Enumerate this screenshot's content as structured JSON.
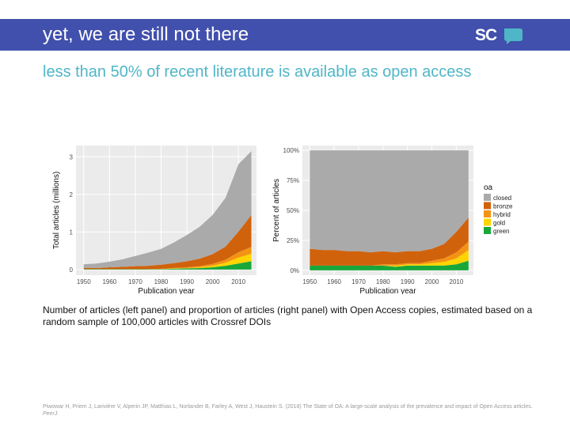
{
  "slide": {
    "title": "yet, we are still not there",
    "subtitle": "less than 50% of recent literature is available as open access",
    "logo_text": "SC",
    "caption": "Number of articles (left panel) and proportion of articles (right panel) with Open Access copies, estimated based on a random sample of 100,000 articles with Crossref DOIs",
    "citation_text": "Piwowar H, Priem J, Larivière V, Alperin JP, Matthias L, Norlander B, Farley A, West J, Haustein S. (2018) The State of OA: A large-scale analysis of the prevalence and impact of Open Access articles.",
    "citation_journal": "PeerJ."
  },
  "colors": {
    "bar": "#4150ac",
    "subtitle": "#4fb6c7",
    "closed": "#aaaaaa",
    "bronze": "#d1620c",
    "hybrid": "#f39314",
    "gold": "#ffd500",
    "green": "#18a73b"
  },
  "chart_data": [
    {
      "type": "area",
      "stacked": true,
      "xlabel": "Publication year",
      "ylabel": "Total articles (millions)",
      "xlim": [
        1947,
        2017
      ],
      "ylim": [
        -0.15,
        3.3
      ],
      "xticks": [
        1950,
        1960,
        1970,
        1980,
        1990,
        2000,
        2010
      ],
      "yticks": [
        0,
        1,
        2,
        3
      ],
      "ytick_labels": [
        "0",
        "1",
        "2",
        "3"
      ],
      "x": [
        1950,
        1955,
        1960,
        1965,
        1970,
        1975,
        1980,
        1985,
        1990,
        1995,
        2000,
        2005,
        2010,
        2015
      ],
      "series": [
        {
          "name": "green",
          "values": [
            0.01,
            0.01,
            0.01,
            0.01,
            0.01,
            0.01,
            0.01,
            0.02,
            0.03,
            0.04,
            0.06,
            0.1,
            0.16,
            0.22
          ]
        },
        {
          "name": "gold",
          "values": [
            0.0,
            0.0,
            0.0,
            0.0,
            0.0,
            0.0,
            0.0,
            0.01,
            0.01,
            0.02,
            0.04,
            0.08,
            0.16,
            0.2
          ]
        },
        {
          "name": "hybrid",
          "values": [
            0.0,
            0.0,
            0.0,
            0.0,
            0.0,
            0.0,
            0.01,
            0.01,
            0.02,
            0.03,
            0.05,
            0.08,
            0.14,
            0.18
          ]
        },
        {
          "name": "bronze",
          "values": [
            0.03,
            0.03,
            0.05,
            0.06,
            0.08,
            0.09,
            0.11,
            0.13,
            0.16,
            0.2,
            0.26,
            0.35,
            0.55,
            0.85
          ]
        },
        {
          "name": "closed",
          "values": [
            0.1,
            0.12,
            0.15,
            0.2,
            0.27,
            0.35,
            0.42,
            0.55,
            0.7,
            0.85,
            1.04,
            1.3,
            1.79,
            1.7
          ]
        }
      ]
    },
    {
      "type": "area",
      "stacked": true,
      "xlabel": "Publication year",
      "ylabel": "Percent of articles",
      "xlim": [
        1947,
        2017
      ],
      "ylim": [
        -4,
        104
      ],
      "xticks": [
        1950,
        1960,
        1970,
        1980,
        1990,
        2000,
        2010
      ],
      "yticks": [
        0,
        25,
        50,
        75,
        100
      ],
      "ytick_labels": [
        "0%",
        "25%",
        "50%",
        "75%",
        "100%"
      ],
      "legend_title": "oa",
      "legend_position": "right",
      "x": [
        1950,
        1955,
        1960,
        1965,
        1970,
        1975,
        1980,
        1985,
        1990,
        1995,
        2000,
        2005,
        2010,
        2015
      ],
      "series": [
        {
          "name": "closed",
          "values": [
            82,
            83,
            83,
            84,
            84,
            85,
            84,
            85,
            84,
            84,
            82,
            78,
            68,
            56
          ]
        },
        {
          "name": "bronze",
          "values": [
            14,
            13,
            13,
            12,
            12,
            11,
            11,
            10,
            10,
            10,
            10,
            12,
            17,
            20
          ]
        },
        {
          "name": "hybrid",
          "values": [
            0,
            0,
            0,
            0,
            0,
            0,
            1,
            1,
            1,
            1,
            2,
            3,
            5,
            7
          ]
        },
        {
          "name": "gold",
          "values": [
            0,
            0,
            0,
            0,
            0,
            0,
            0,
            1,
            1,
            1,
            2,
            3,
            5,
            9
          ]
        },
        {
          "name": "green",
          "values": [
            4,
            4,
            4,
            4,
            4,
            4,
            4,
            3,
            4,
            4,
            4,
            4,
            5,
            8
          ]
        }
      ]
    }
  ]
}
